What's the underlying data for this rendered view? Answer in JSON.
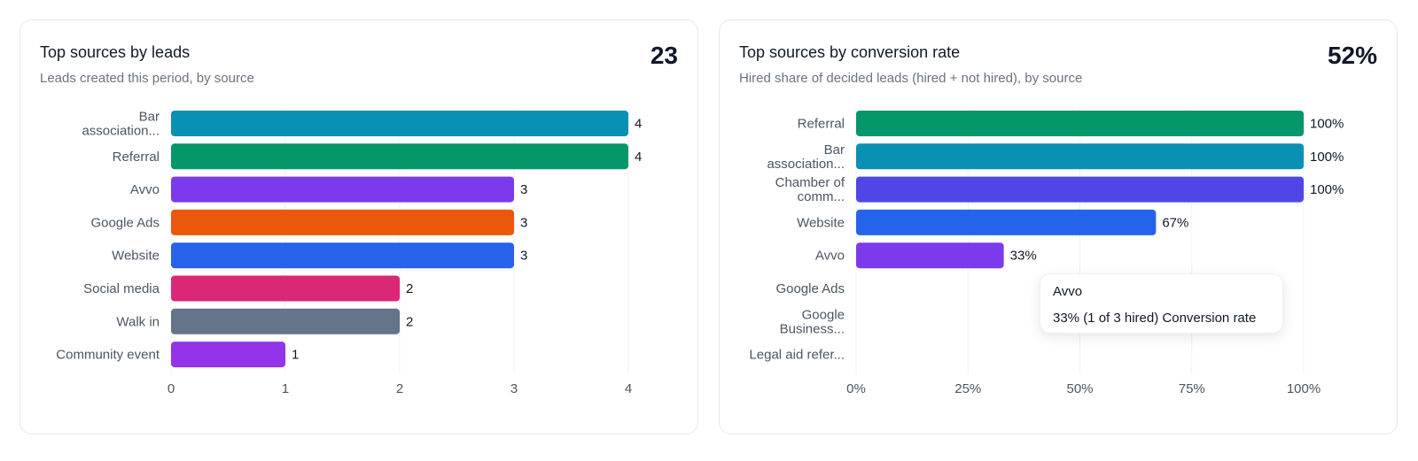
{
  "cards": [
    {
      "title": "Top sources by leads",
      "subtitle": "Leads created this period, by source",
      "metric": "23"
    },
    {
      "title": "Top sources by conversion rate",
      "subtitle": "Hired share of decided leads (hired + not hired), by source",
      "metric": "52%"
    }
  ],
  "chart_data": [
    {
      "type": "bar",
      "orientation": "horizontal",
      "categories": [
        [
          "Bar",
          "association..."
        ],
        [
          "Referral"
        ],
        [
          "Avvo"
        ],
        [
          "Google Ads"
        ],
        [
          "Website"
        ],
        [
          "Social media"
        ],
        [
          "Walk in"
        ],
        [
          "Community event"
        ]
      ],
      "values": [
        4,
        4,
        3,
        3,
        3,
        2,
        2,
        1
      ],
      "value_labels": [
        "4",
        "4",
        "3",
        "3",
        "3",
        "2",
        "2",
        "1"
      ],
      "colors": [
        "#0891b2",
        "#059669",
        "#7c3aed",
        "#ea580c",
        "#2563eb",
        "#db2777",
        "#64748b",
        "#9333ea"
      ],
      "xlim": [
        0,
        4
      ],
      "ticks": [
        "0",
        "1",
        "2",
        "3",
        "4"
      ],
      "grid": true,
      "title": "Top sources by leads",
      "xlabel": "",
      "ylabel": ""
    },
    {
      "type": "bar",
      "orientation": "horizontal",
      "categories": [
        [
          "Referral"
        ],
        [
          "Bar",
          "association..."
        ],
        [
          "Chamber of",
          "comm..."
        ],
        [
          "Website"
        ],
        [
          "Avvo"
        ],
        [
          "Google Ads"
        ],
        [
          "Google",
          "Business..."
        ],
        [
          "Legal aid refer..."
        ]
      ],
      "values": [
        100,
        100,
        100,
        67,
        33,
        null,
        null,
        null
      ],
      "value_labels": [
        "100%",
        "100%",
        "100%",
        "67%",
        "33%",
        "",
        "",
        ""
      ],
      "colors": [
        "#059669",
        "#0891b2",
        "#4f46e5",
        "#2563eb",
        "#7c3aed",
        "",
        "",
        ""
      ],
      "xlim": [
        0,
        100
      ],
      "ticks": [
        "0%",
        "25%",
        "50%",
        "75%",
        "100%"
      ],
      "grid": true,
      "title": "Top sources by conversion rate",
      "xlabel": "",
      "ylabel": ""
    }
  ],
  "tooltip": {
    "title": "Avvo",
    "body": "33% (1 of 3 hired) Conversion rate"
  }
}
